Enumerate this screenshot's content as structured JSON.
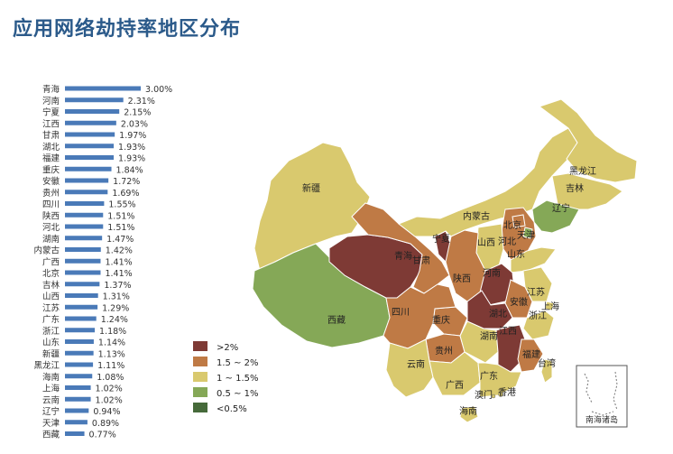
{
  "title": "应用网络劫持率地区分布",
  "colors": {
    "bar": "#4a7ab8",
    "c_gt2": "#7e3a35",
    "c_15_2": "#bf7a45",
    "c_1_15": "#d9c96e",
    "c_05_1": "#85a857",
    "c_lt05": "#466a3a"
  },
  "chart_data": {
    "type": "bar",
    "orientation": "horizontal",
    "categories": [
      "青海",
      "河南",
      "宁夏",
      "江西",
      "甘肃",
      "湖北",
      "福建",
      "重庆",
      "安徽",
      "贵州",
      "四川",
      "陕西",
      "河北",
      "湖南",
      "内蒙古",
      "广西",
      "北京",
      "吉林",
      "山西",
      "江苏",
      "广东",
      "浙江",
      "山东",
      "新疆",
      "黑龙江",
      "海南",
      "上海",
      "云南",
      "辽宁",
      "天津",
      "西藏"
    ],
    "values": [
      3.0,
      2.31,
      2.15,
      2.03,
      1.97,
      1.93,
      1.93,
      1.84,
      1.72,
      1.69,
      1.55,
      1.51,
      1.51,
      1.47,
      1.42,
      1.41,
      1.41,
      1.37,
      1.31,
      1.29,
      1.24,
      1.18,
      1.14,
      1.13,
      1.11,
      1.08,
      1.02,
      1.02,
      0.94,
      0.89,
      0.77
    ],
    "labels": [
      "3.00%",
      "2.31%",
      "2.15%",
      "2.03%",
      "1.97%",
      "1.93%",
      "1.93%",
      "1.84%",
      "1.72%",
      "1.69%",
      "1.55%",
      "1.51%",
      "1.51%",
      "1.47%",
      "1.42%",
      "1.41%",
      "1.41%",
      "1.37%",
      "1.31%",
      "1.29%",
      "1.24%",
      "1.18%",
      "1.14%",
      "1.13%",
      "1.11%",
      "1.08%",
      "1.02%",
      "1.02%",
      "0.94%",
      "0.89%",
      "0.77%"
    ],
    "unit": "%",
    "xlim": [
      0,
      3.0
    ]
  },
  "map": {
    "labels": [
      "新疆",
      "西藏",
      "青海",
      "甘肃",
      "宁夏",
      "内蒙古",
      "黑龙江",
      "吉林",
      "辽宁",
      "北京",
      "天津",
      "河北",
      "山西",
      "山东",
      "陕西",
      "河南",
      "四川",
      "重庆",
      "湖北",
      "安徽",
      "江苏",
      "上海",
      "浙江",
      "湖南",
      "江西",
      "贵州",
      "云南",
      "广西",
      "广东",
      "福建",
      "台湾",
      "香港",
      "澳门",
      "海南"
    ],
    "inset_label": "南海诸岛"
  },
  "legend": [
    {
      "label": ">2%",
      "color": "#7e3a35"
    },
    {
      "label": "1.5 ~ 2%",
      "color": "#bf7a45"
    },
    {
      "label": "1 ~ 1.5%",
      "color": "#d9c96e"
    },
    {
      "label": "0.5 ~ 1%",
      "color": "#85a857"
    },
    {
      "label": "<0.5%",
      "color": "#466a3a"
    }
  ]
}
